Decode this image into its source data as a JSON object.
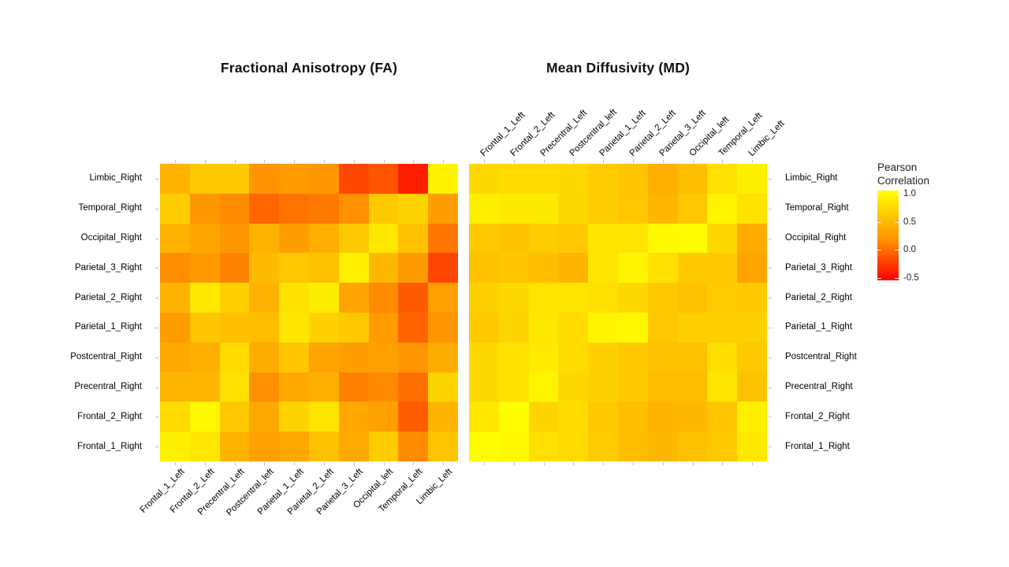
{
  "chart_data": {
    "type": "heatmap",
    "description": "Two 10x10 Pearson correlation heatmaps between right- and left-hemisphere brain regions",
    "row_labels": [
      "Limbic_Right",
      "Temporal_Right",
      "Occipital_Right",
      "Parietal_3_Right",
      "Parietal_2_Right",
      "Parietal_1_Right",
      "Postcentral_Right",
      "Precentral_Right",
      "Frontal_2_Right",
      "Frontal_1_Right"
    ],
    "col_labels": [
      "Frontal_1_Left",
      "Frontal_2_Left",
      "Precentral_Left",
      "Postcentral_left",
      "Parietal_1_Left",
      "Parietal_2_Left",
      "Parietal_3_Left",
      "Occipital_left",
      "Temporal_Left",
      "Limbic_Left"
    ],
    "panels": [
      {
        "title": "Fractional Anisotropy (FA)",
        "col_labels_position": "bottom",
        "values": [
          [
            0.55,
            0.68,
            0.68,
            0.37,
            0.42,
            0.39,
            -0.08,
            0.0,
            -0.32,
            0.93
          ],
          [
            0.7,
            0.39,
            0.32,
            0.1,
            0.18,
            0.22,
            0.35,
            0.68,
            0.74,
            0.43
          ],
          [
            0.55,
            0.47,
            0.39,
            0.55,
            0.43,
            0.53,
            0.68,
            0.86,
            0.63,
            0.2
          ],
          [
            0.34,
            0.4,
            0.27,
            0.6,
            0.67,
            0.63,
            0.92,
            0.58,
            0.41,
            -0.09
          ],
          [
            0.55,
            0.87,
            0.72,
            0.55,
            0.83,
            0.9,
            0.46,
            0.32,
            0.03,
            0.44
          ],
          [
            0.42,
            0.66,
            0.62,
            0.62,
            0.85,
            0.73,
            0.68,
            0.42,
            0.09,
            0.38
          ],
          [
            0.49,
            0.53,
            0.79,
            0.51,
            0.66,
            0.46,
            0.43,
            0.44,
            0.38,
            0.51
          ],
          [
            0.57,
            0.57,
            0.82,
            0.35,
            0.49,
            0.53,
            0.26,
            0.31,
            0.15,
            0.75
          ],
          [
            0.79,
            0.96,
            0.68,
            0.49,
            0.74,
            0.84,
            0.48,
            0.44,
            0.05,
            0.56
          ],
          [
            0.91,
            0.86,
            0.56,
            0.44,
            0.49,
            0.63,
            0.5,
            0.7,
            0.32,
            0.66
          ]
        ]
      },
      {
        "title": "Mean Diffusivity (MD)",
        "col_labels_position": "top",
        "values": [
          [
            0.77,
            0.79,
            0.79,
            0.77,
            0.7,
            0.66,
            0.53,
            0.62,
            0.82,
            0.91
          ],
          [
            0.91,
            0.88,
            0.88,
            0.77,
            0.71,
            0.67,
            0.57,
            0.67,
            0.94,
            0.83
          ],
          [
            0.68,
            0.64,
            0.7,
            0.67,
            0.84,
            0.84,
            0.96,
            0.98,
            0.77,
            0.51
          ],
          [
            0.63,
            0.66,
            0.62,
            0.56,
            0.85,
            0.94,
            0.82,
            0.68,
            0.68,
            0.46
          ],
          [
            0.73,
            0.77,
            0.84,
            0.84,
            0.82,
            0.77,
            0.68,
            0.63,
            0.69,
            0.68
          ],
          [
            0.68,
            0.75,
            0.86,
            0.79,
            0.94,
            0.96,
            0.67,
            0.72,
            0.72,
            0.73
          ],
          [
            0.77,
            0.82,
            0.89,
            0.79,
            0.73,
            0.68,
            0.63,
            0.63,
            0.8,
            0.68
          ],
          [
            0.77,
            0.82,
            0.94,
            0.77,
            0.73,
            0.68,
            0.61,
            0.61,
            0.85,
            0.64
          ],
          [
            0.86,
            0.98,
            0.75,
            0.79,
            0.68,
            0.61,
            0.56,
            0.58,
            0.66,
            0.91
          ],
          [
            0.98,
            0.96,
            0.82,
            0.79,
            0.7,
            0.61,
            0.58,
            0.63,
            0.68,
            0.87
          ]
        ]
      }
    ],
    "colorscale": {
      "min": -0.5,
      "max": 1.0,
      "low_color": "#FF0000",
      "high_color": "#FFFF00"
    },
    "legend": {
      "title_lines": [
        "Pearson",
        "Correlation"
      ],
      "tick_labels": [
        "1.0",
        "0.5",
        "0.0",
        "-0.5"
      ],
      "tick_values": [
        1.0,
        0.5,
        0.0,
        -0.5
      ]
    }
  }
}
